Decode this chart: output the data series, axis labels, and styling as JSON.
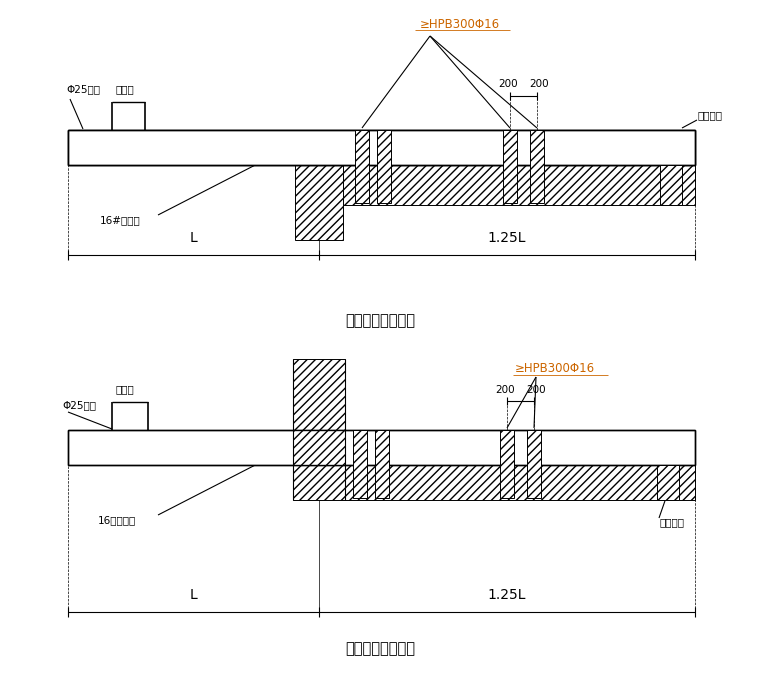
{
  "fig_width": 7.6,
  "fig_height": 6.79,
  "dpi": 100,
  "bg_color": "#ffffff",
  "title1": "悬挑钢梁楼面构造",
  "title2": "悬挑钢梁穿墙构造",
  "label_hpb1": "≥HPB300Φ16",
  "label_hpb2": "≥HPB300Φ16",
  "label_25bar1": "Φ25钢筋",
  "label_25bar2": "Φ25钢筋",
  "label_width1": "同架宽",
  "label_width2": "同架宽",
  "label_steel1": "16#工字钢",
  "label_steel2": "16号工字钢",
  "label_wedge1": "木楔塞紧",
  "label_wedge2": "木楔塞紧",
  "label_200a": "200",
  "label_200b": "200",
  "label_L": "L",
  "label_125L": "1.25L",
  "orange": "#cc6600"
}
